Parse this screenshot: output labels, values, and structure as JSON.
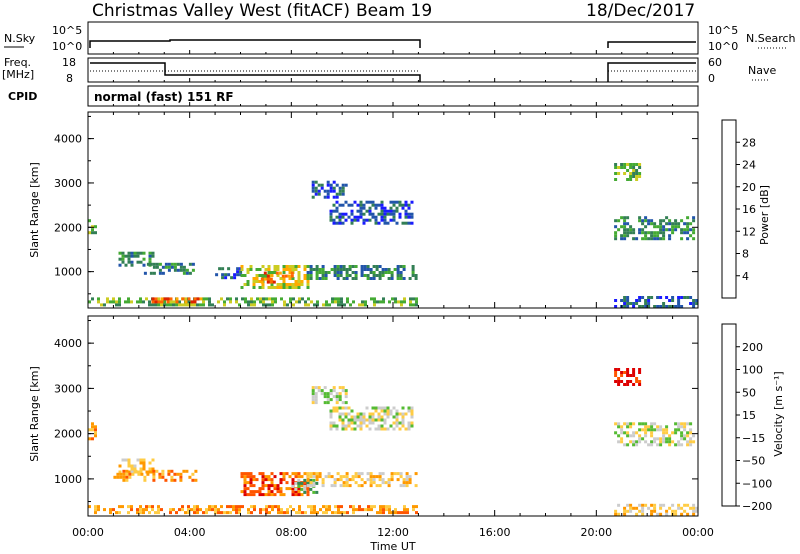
{
  "header": {
    "title": "Christmas Valley West (fitACF)",
    "beam": "Beam 19",
    "date": "18/Dec/2017"
  },
  "sky_panel": {
    "label": "N.Sky",
    "yticks": [
      "10^5",
      "10^0"
    ],
    "right_label": "N.Search",
    "right_ticks": [
      "10^5",
      "10^0"
    ]
  },
  "freq_panel": {
    "label_top": "Freq.",
    "label_bottom": "[MHz]",
    "yticks": [
      "18",
      "8"
    ],
    "right_label": "Nave",
    "right_ticks": [
      "60",
      "0"
    ]
  },
  "cpid_panel": {
    "label": "CPID",
    "text": "normal (fast) 151 RF"
  },
  "colors": {
    "power": [
      "#1a1aff",
      "#2255aa",
      "#337f55",
      "#44aa33",
      "#cccc22",
      "#ffaa00",
      "#ff6600",
      "#dd2200"
    ],
    "velocity": [
      "#2244cc",
      "#338855",
      "#55bb33",
      "#cccccc",
      "#ffcc44",
      "#ff9900",
      "#ff5500",
      "#dd0000"
    ],
    "ground_scatter": "#aaaaaa"
  },
  "chart_data": [
    {
      "type": "heatmap",
      "name": "power",
      "ylabel": "Slant Range [km]",
      "xlabel": "Time UT",
      "xticks": [
        "00:00",
        "04:00",
        "08:00",
        "12:00",
        "16:00",
        "20:00",
        "00:00"
      ],
      "xlim_hours": [
        0,
        24
      ],
      "yticks": [
        "1000",
        "2000",
        "3000",
        "4000"
      ],
      "ylim_km": [
        180,
        4600
      ],
      "colorbar": {
        "label": "Power [dB]",
        "ticks": [
          "4",
          "8",
          "12",
          "16",
          "20",
          "24",
          "28"
        ],
        "range": [
          0,
          32
        ]
      },
      "echo_regions": [
        {
          "t": [
            0.0,
            0.3
          ],
          "r": [
            1900,
            2250
          ],
          "level": 3
        },
        {
          "t": [
            1.2,
            2.6
          ],
          "r": [
            1150,
            1450
          ],
          "level": 2
        },
        {
          "t": [
            2.2,
            4.2
          ],
          "r": [
            950,
            1200
          ],
          "level": 2
        },
        {
          "t": [
            5.0,
            6.0
          ],
          "r": [
            850,
            1100
          ],
          "level": 1
        },
        {
          "t": [
            6.0,
            8.6
          ],
          "r": [
            650,
            1150
          ],
          "level": 4
        },
        {
          "t": [
            6.8,
            8.0
          ],
          "r": [
            750,
            1000
          ],
          "level": 6
        },
        {
          "t": [
            8.6,
            12.9
          ],
          "r": [
            850,
            1150
          ],
          "level": 2
        },
        {
          "t": [
            9.5,
            12.7
          ],
          "r": [
            2100,
            2600
          ],
          "level": 1
        },
        {
          "t": [
            8.8,
            10.2
          ],
          "r": [
            2700,
            3050
          ],
          "level": 1
        },
        {
          "t": [
            0.0,
            12.9
          ],
          "r": [
            250,
            420
          ],
          "level": 3
        },
        {
          "t": [
            2.5,
            4.5
          ],
          "r": [
            300,
            420
          ],
          "level": 6
        },
        {
          "t": [
            20.7,
            21.7
          ],
          "r": [
            3100,
            3450
          ],
          "level": 3
        },
        {
          "t": [
            20.7,
            23.8
          ],
          "r": [
            1750,
            2250
          ],
          "level": 2
        },
        {
          "t": [
            20.7,
            24.0
          ],
          "r": [
            220,
            450
          ],
          "level": 1
        }
      ]
    },
    {
      "type": "heatmap",
      "name": "velocity",
      "ylabel": "Slant Range [km]",
      "xlabel": "Time UT",
      "xticks": [
        "00:00",
        "04:00",
        "08:00",
        "12:00",
        "16:00",
        "20:00",
        "00:00"
      ],
      "xlim_hours": [
        0,
        24
      ],
      "yticks": [
        "1000",
        "2000",
        "3000",
        "4000"
      ],
      "ylim_km": [
        180,
        4600
      ],
      "colorbar": {
        "label": "Velocity [m s⁻¹]",
        "ticks": [
          "200",
          "100",
          "50",
          "15",
          "−15",
          "−50",
          "−100",
          "−200"
        ],
        "range": [
          -250,
          250
        ]
      },
      "echo_regions": [
        {
          "t": [
            0.0,
            0.3
          ],
          "r": [
            1900,
            2250
          ],
          "level": 5
        },
        {
          "t": [
            1.2,
            2.6
          ],
          "r": [
            1150,
            1450
          ],
          "level": 4
        },
        {
          "t": [
            1.0,
            4.2
          ],
          "r": [
            950,
            1200
          ],
          "level": 5
        },
        {
          "t": [
            6.0,
            8.6
          ],
          "r": [
            650,
            1150
          ],
          "level": 6
        },
        {
          "t": [
            8.0,
            9.0
          ],
          "r": [
            700,
            1000
          ],
          "level": 2
        },
        {
          "t": [
            8.6,
            12.9
          ],
          "r": [
            850,
            1150
          ],
          "level": 4
        },
        {
          "t": [
            9.5,
            12.7
          ],
          "r": [
            2100,
            2600
          ],
          "level": 3
        },
        {
          "t": [
            8.8,
            10.2
          ],
          "r": [
            2700,
            3050
          ],
          "level": 3
        },
        {
          "t": [
            0.0,
            12.9
          ],
          "r": [
            250,
            420
          ],
          "level": 5
        },
        {
          "t": [
            20.7,
            21.7
          ],
          "r": [
            3100,
            3450
          ],
          "level": 7
        },
        {
          "t": [
            20.7,
            23.8
          ],
          "r": [
            1750,
            2250
          ],
          "level": 3
        },
        {
          "t": [
            20.7,
            24.0
          ],
          "r": [
            220,
            450
          ],
          "level": 4
        }
      ]
    }
  ],
  "footer": {
    "xaxis_label": "Time UT"
  }
}
